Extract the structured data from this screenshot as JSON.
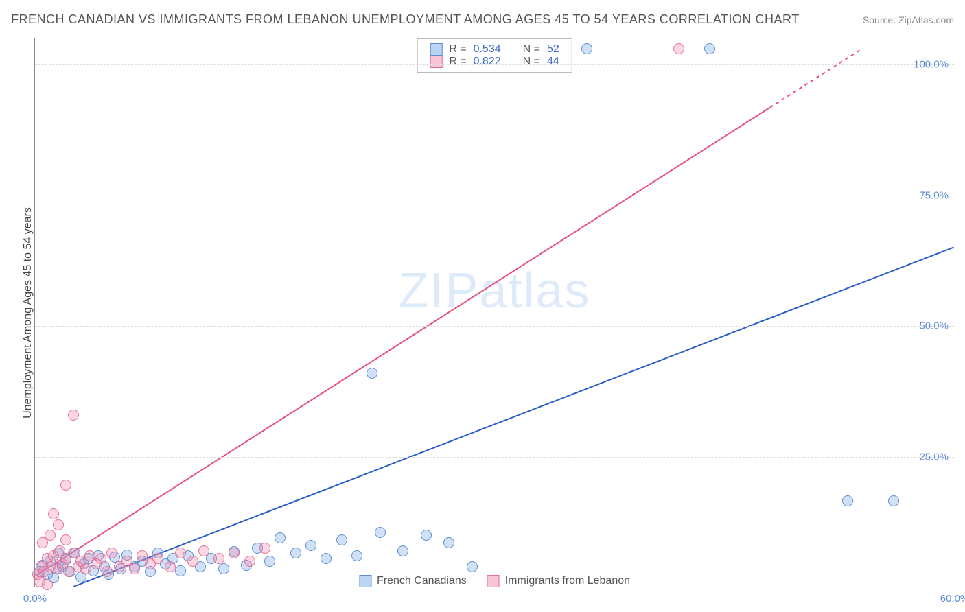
{
  "title": "FRENCH CANADIAN VS IMMIGRANTS FROM LEBANON UNEMPLOYMENT AMONG AGES 45 TO 54 YEARS CORRELATION CHART",
  "source_label": "Source: ",
  "source_value": "ZipAtlas.com",
  "y_axis_label": "Unemployment Among Ages 45 to 54 years",
  "watermark": {
    "zip": "ZIP",
    "atlas": "atlas"
  },
  "chart": {
    "type": "scatter",
    "xlim": [
      0,
      60
    ],
    "ylim": [
      0,
      105
    ],
    "x_ticks": [
      {
        "v": 0,
        "label": "0.0%"
      },
      {
        "v": 60,
        "label": "60.0%"
      }
    ],
    "y_ticks": [
      {
        "v": 25,
        "label": "25.0%"
      },
      {
        "v": 50,
        "label": "50.0%"
      },
      {
        "v": 75,
        "label": "75.0%"
      },
      {
        "v": 100,
        "label": "100.0%"
      }
    ],
    "grid_color": "#dddddd",
    "axis_color": "#888888",
    "tick_label_color": "#5b8dd6",
    "background_color": "#ffffff",
    "point_radius": 8,
    "series": [
      {
        "name": "French Canadians",
        "color_key": "blue",
        "fill": "rgba(120,170,230,0.35)",
        "stroke": "#5b8dd6",
        "trend": {
          "x1": 2.5,
          "y1": 0,
          "x2": 60,
          "y2": 65,
          "color": "#2b5fc8",
          "width": 2
        },
        "R": "0.534",
        "N": "52",
        "points": [
          [
            0.3,
            3.0
          ],
          [
            0.5,
            4.2
          ],
          [
            0.8,
            2.5
          ],
          [
            1.0,
            5.0
          ],
          [
            1.2,
            1.8
          ],
          [
            1.5,
            3.5
          ],
          [
            1.8,
            4.0
          ],
          [
            2.0,
            5.2
          ],
          [
            2.3,
            3.0
          ],
          [
            2.6,
            6.5
          ],
          [
            3.0,
            2.0
          ],
          [
            3.2,
            4.5
          ],
          [
            3.5,
            5.5
          ],
          [
            3.8,
            3.2
          ],
          [
            4.1,
            6.0
          ],
          [
            4.5,
            4.0
          ],
          [
            4.8,
            2.5
          ],
          [
            5.2,
            5.8
          ],
          [
            5.6,
            3.5
          ],
          [
            6.0,
            6.2
          ],
          [
            6.5,
            4.0
          ],
          [
            7.0,
            5.0
          ],
          [
            7.5,
            3.0
          ],
          [
            8.0,
            6.5
          ],
          [
            8.5,
            4.5
          ],
          [
            9.0,
            5.5
          ],
          [
            9.5,
            3.2
          ],
          [
            10.0,
            6.0
          ],
          [
            10.8,
            4.0
          ],
          [
            11.5,
            5.5
          ],
          [
            12.3,
            3.5
          ],
          [
            13.0,
            6.8
          ],
          [
            13.8,
            4.2
          ],
          [
            14.5,
            7.5
          ],
          [
            15.3,
            5.0
          ],
          [
            16.0,
            9.5
          ],
          [
            17.0,
            6.5
          ],
          [
            18.0,
            8.0
          ],
          [
            19.0,
            5.5
          ],
          [
            20.0,
            9.0
          ],
          [
            21.0,
            6.0
          ],
          [
            22.5,
            10.5
          ],
          [
            24.0,
            7.0
          ],
          [
            25.5,
            10.0
          ],
          [
            27.0,
            8.5
          ],
          [
            28.5,
            4.0
          ],
          [
            22.0,
            41.0
          ],
          [
            36.0,
            103.0
          ],
          [
            44.0,
            103.0
          ],
          [
            53.0,
            16.5
          ],
          [
            56.0,
            16.5
          ],
          [
            1.5,
            6.5
          ]
        ]
      },
      {
        "name": "Immigrants from Lebanon",
        "color_key": "pink",
        "fill": "rgba(240,140,170,0.35)",
        "stroke": "#e6709a",
        "trend": {
          "x1": 0,
          "y1": 2,
          "x2": 54,
          "y2": 103,
          "color": "#e6507f",
          "width": 2,
          "dash_tail": true,
          "dash_from_x": 48
        },
        "R": "0.822",
        "N": "44",
        "points": [
          [
            0.2,
            2.5
          ],
          [
            0.4,
            4.0
          ],
          [
            0.6,
            3.0
          ],
          [
            0.8,
            5.5
          ],
          [
            1.0,
            4.0
          ],
          [
            1.2,
            6.0
          ],
          [
            1.4,
            3.5
          ],
          [
            1.6,
            7.0
          ],
          [
            1.8,
            4.5
          ],
          [
            2.0,
            5.5
          ],
          [
            2.2,
            3.0
          ],
          [
            2.5,
            6.5
          ],
          [
            2.8,
            4.0
          ],
          [
            3.0,
            5.0
          ],
          [
            3.3,
            3.5
          ],
          [
            3.6,
            6.0
          ],
          [
            4.0,
            4.5
          ],
          [
            4.3,
            5.5
          ],
          [
            4.7,
            3.0
          ],
          [
            5.0,
            6.5
          ],
          [
            5.5,
            4.0
          ],
          [
            6.0,
            5.0
          ],
          [
            6.5,
            3.5
          ],
          [
            7.0,
            6.0
          ],
          [
            7.5,
            4.5
          ],
          [
            8.0,
            5.5
          ],
          [
            8.8,
            4.0
          ],
          [
            9.5,
            6.5
          ],
          [
            10.3,
            5.0
          ],
          [
            11.0,
            7.0
          ],
          [
            12.0,
            5.5
          ],
          [
            13.0,
            6.5
          ],
          [
            14.0,
            5.0
          ],
          [
            15.0,
            7.5
          ],
          [
            0.5,
            8.5
          ],
          [
            1.0,
            10.0
          ],
          [
            1.5,
            12.0
          ],
          [
            2.0,
            9.0
          ],
          [
            1.2,
            14.0
          ],
          [
            2.0,
            19.5
          ],
          [
            2.5,
            33.0
          ],
          [
            0.3,
            1.0
          ],
          [
            0.8,
            0.5
          ],
          [
            42.0,
            103.0
          ]
        ]
      }
    ]
  },
  "legend_top": {
    "rows": [
      {
        "sw": "blue",
        "r_label": "R =",
        "r_val": "0.534",
        "n_label": "N =",
        "n_val": "52"
      },
      {
        "sw": "pink",
        "r_label": "R =",
        "r_val": "0.822",
        "n_label": "N =",
        "n_val": "44"
      }
    ]
  },
  "legend_bottom": {
    "items": [
      {
        "sw": "blue",
        "label": "French Canadians"
      },
      {
        "sw": "pink",
        "label": "Immigrants from Lebanon"
      }
    ]
  }
}
